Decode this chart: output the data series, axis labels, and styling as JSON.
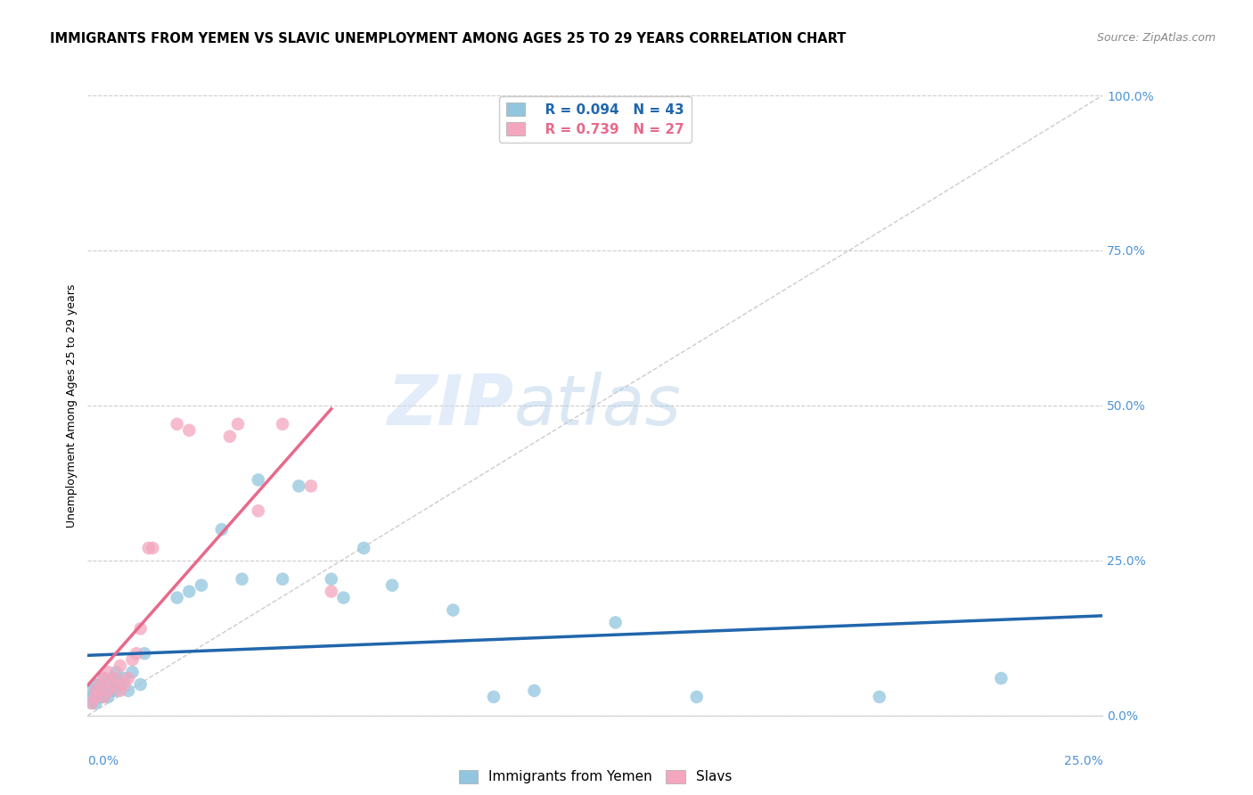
{
  "title": "IMMIGRANTS FROM YEMEN VS SLAVIC UNEMPLOYMENT AMONG AGES 25 TO 29 YEARS CORRELATION CHART",
  "source": "Source: ZipAtlas.com",
  "ylabel": "Unemployment Among Ages 25 to 29 years",
  "legend_label1": "Immigrants from Yemen",
  "legend_label2": "Slavs",
  "legend_R1": "R = 0.094",
  "legend_N1": "N = 43",
  "legend_R2": "R = 0.739",
  "legend_N2": "N = 27",
  "color_yemen": "#92c5de",
  "color_slavs": "#f4a6be",
  "color_trendline_yemen": "#2166ac",
  "color_trendline_slavs": "#e8698a",
  "color_diagonal": "#cccccc",
  "color_grid": "#cccccc",
  "color_ytick": "#4d94d6",
  "color_xtick": "#4d94d6",
  "xmin": 0.0,
  "xmax": 0.25,
  "ymin": 0.0,
  "ymax": 1.0,
  "ytick_values": [
    0.0,
    0.25,
    0.5,
    0.75,
    1.0
  ],
  "xtick_values": [
    0.0,
    0.25
  ],
  "yemen_x": [
    0.001,
    0.001,
    0.001,
    0.002,
    0.002,
    0.002,
    0.003,
    0.003,
    0.003,
    0.004,
    0.004,
    0.004,
    0.005,
    0.005,
    0.006,
    0.006,
    0.007,
    0.007,
    0.008,
    0.009,
    0.01,
    0.011,
    0.013,
    0.014,
    0.022,
    0.025,
    0.028,
    0.033,
    0.038,
    0.042,
    0.048,
    0.052,
    0.06,
    0.063,
    0.068,
    0.075,
    0.09,
    0.1,
    0.11,
    0.13,
    0.15,
    0.195,
    0.225
  ],
  "yemen_y": [
    0.02,
    0.03,
    0.04,
    0.02,
    0.04,
    0.05,
    0.03,
    0.04,
    0.05,
    0.03,
    0.04,
    0.06,
    0.03,
    0.05,
    0.04,
    0.06,
    0.04,
    0.07,
    0.05,
    0.06,
    0.04,
    0.07,
    0.05,
    0.1,
    0.19,
    0.2,
    0.21,
    0.3,
    0.22,
    0.38,
    0.22,
    0.37,
    0.22,
    0.19,
    0.27,
    0.21,
    0.17,
    0.03,
    0.04,
    0.15,
    0.03,
    0.03,
    0.06
  ],
  "slavs_x": [
    0.001,
    0.002,
    0.002,
    0.003,
    0.004,
    0.004,
    0.005,
    0.005,
    0.006,
    0.007,
    0.008,
    0.008,
    0.009,
    0.01,
    0.011,
    0.012,
    0.013,
    0.015,
    0.016,
    0.022,
    0.025,
    0.035,
    0.037,
    0.042,
    0.048,
    0.055,
    0.06
  ],
  "slavs_y": [
    0.02,
    0.03,
    0.04,
    0.05,
    0.03,
    0.06,
    0.04,
    0.07,
    0.05,
    0.06,
    0.04,
    0.08,
    0.05,
    0.06,
    0.09,
    0.1,
    0.14,
    0.27,
    0.27,
    0.47,
    0.46,
    0.45,
    0.47,
    0.33,
    0.47,
    0.37,
    0.2
  ],
  "watermark_zip": "ZIP",
  "watermark_atlas": "atlas",
  "title_fontsize": 10.5,
  "source_fontsize": 9,
  "axis_label_fontsize": 9,
  "tick_fontsize": 10,
  "legend_fontsize": 11
}
